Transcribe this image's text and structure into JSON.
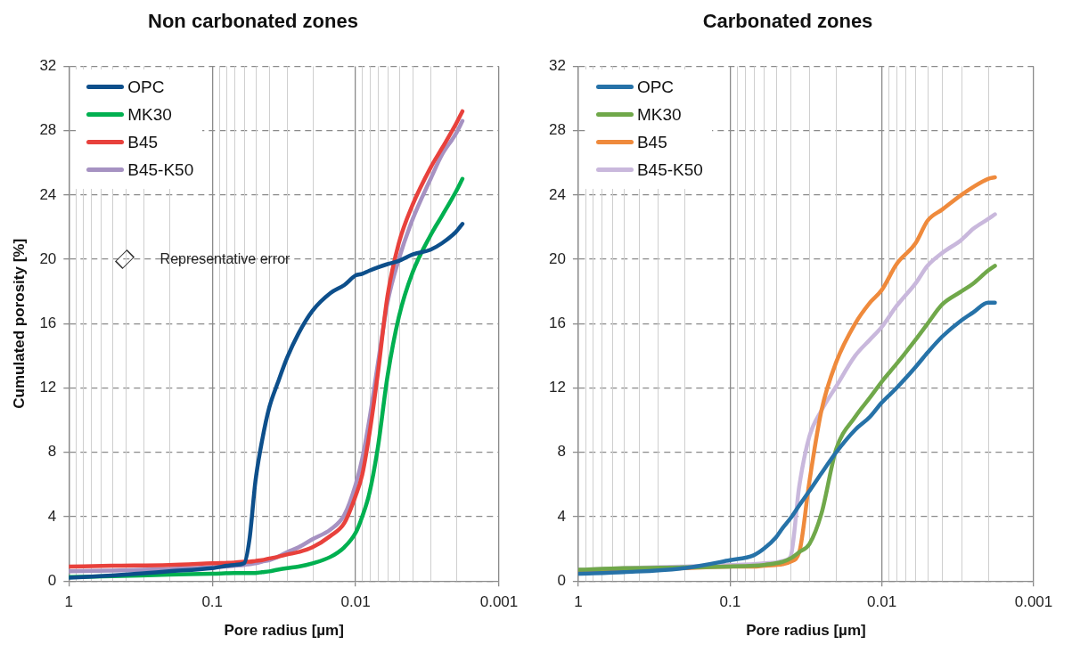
{
  "chart_data": [
    {
      "type": "line",
      "title": "Non carbonated zones",
      "xlabel": "Pore radius [µm]",
      "ylabel": "Cumulated porosity [%]",
      "log": "x",
      "grid": true,
      "legend": "top left",
      "marker": "none",
      "line_style": "solid",
      "xlim": [
        1,
        0.001
      ],
      "xticks": [
        1,
        0.1,
        0.01,
        0.001
      ],
      "ylim": [
        0,
        32
      ],
      "yticks": [
        0,
        4,
        8,
        12,
        16,
        20,
        24,
        28,
        32
      ],
      "annotations": [
        "Representative error"
      ],
      "x": [
        1,
        0.5,
        0.2,
        0.1,
        0.07,
        0.06,
        0.055,
        0.05,
        0.045,
        0.04,
        0.035,
        0.03,
        0.025,
        0.02,
        0.015,
        0.012,
        0.01,
        0.009,
        0.008,
        0.007,
        0.006,
        0.005,
        0.004,
        0.003,
        0.0025,
        0.002,
        0.0018
      ],
      "series": [
        {
          "name": "OPC",
          "color": "#0d4f8b",
          "values": [
            0.2,
            0.35,
            0.6,
            0.8,
            1.0,
            1.1,
            2.6,
            6.2,
            8.7,
            10.8,
            12.3,
            13.9,
            15.4,
            16.8,
            17.9,
            18.4,
            19.0,
            19.1,
            19.3,
            19.5,
            19.7,
            19.9,
            20.3,
            20.6,
            21.0,
            21.7,
            22.2
          ]
        },
        {
          "name": "MK30",
          "color": "#00b050",
          "values": [
            0.25,
            0.3,
            0.4,
            0.45,
            0.5,
            0.5,
            0.5,
            0.5,
            0.55,
            0.6,
            0.7,
            0.8,
            0.9,
            1.1,
            1.5,
            2.1,
            3.0,
            4.0,
            5.5,
            8.3,
            12.7,
            16.4,
            19.2,
            21.5,
            22.7,
            24.2,
            25.0
          ]
        },
        {
          "name": "B45",
          "color": "#e8413c",
          "values": [
            0.9,
            0.95,
            1.0,
            1.1,
            1.15,
            1.2,
            1.2,
            1.25,
            1.3,
            1.4,
            1.5,
            1.65,
            1.8,
            2.1,
            2.8,
            3.6,
            5.3,
            6.6,
            9.2,
            12.9,
            17.7,
            21.0,
            23.4,
            25.7,
            26.9,
            28.4,
            29.2
          ]
        },
        {
          "name": "B45-K50",
          "color": "#a692c2",
          "values": [
            0.6,
            0.65,
            0.75,
            0.85,
            0.95,
            1.0,
            1.05,
            1.1,
            1.2,
            1.3,
            1.5,
            1.8,
            2.1,
            2.6,
            3.2,
            4.1,
            6.0,
            7.6,
            10.1,
            13.5,
            17.3,
            20.0,
            22.5,
            25.0,
            26.5,
            27.8,
            28.6
          ]
        }
      ]
    },
    {
      "type": "line",
      "title": "Carbonated zones",
      "xlabel": "Pore radius [µm]",
      "log": "x",
      "grid": true,
      "legend": "top left",
      "marker": "none",
      "line_style": "solid",
      "xlim": [
        1,
        0.001
      ],
      "xticks": [
        1,
        0.1,
        0.01,
        0.001
      ],
      "ylim": [
        0,
        32
      ],
      "yticks": [
        0,
        4,
        8,
        12,
        16,
        20,
        24,
        28,
        32
      ],
      "x": [
        1,
        0.5,
        0.2,
        0.1,
        0.07,
        0.06,
        0.05,
        0.045,
        0.04,
        0.035,
        0.03,
        0.025,
        0.02,
        0.015,
        0.012,
        0.01,
        0.008,
        0.006,
        0.005,
        0.004,
        0.003,
        0.0025,
        0.002,
        0.0018
      ],
      "series": [
        {
          "name": "OPC",
          "color": "#2672a8",
          "values": [
            0.45,
            0.55,
            0.8,
            1.3,
            1.6,
            2.0,
            2.7,
            3.3,
            3.9,
            4.7,
            5.6,
            6.7,
            8.0,
            9.4,
            10.2,
            11.1,
            12.0,
            13.3,
            14.2,
            15.2,
            16.2,
            16.7,
            17.3,
            17.3
          ]
        },
        {
          "name": "MK30",
          "color": "#70a84a",
          "values": [
            0.7,
            0.8,
            0.85,
            0.9,
            0.95,
            1.0,
            1.1,
            1.2,
            1.4,
            1.8,
            2.3,
            4.2,
            8.2,
            10.2,
            11.4,
            12.4,
            13.5,
            15.0,
            16.0,
            17.2,
            18.0,
            18.5,
            19.3,
            19.6
          ]
        },
        {
          "name": "B45",
          "color": "#ef8a3c",
          "values": [
            0.6,
            0.7,
            0.8,
            0.9,
            0.9,
            0.95,
            1.0,
            1.05,
            1.2,
            1.8,
            6.2,
            10.6,
            13.6,
            16.0,
            17.3,
            18.1,
            19.7,
            21.0,
            22.4,
            23.1,
            24.0,
            24.5,
            25.0,
            25.1
          ]
        },
        {
          "name": "B45-K50",
          "color": "#c9b8dc",
          "values": [
            0.7,
            0.8,
            0.9,
            1.0,
            1.05,
            1.1,
            1.15,
            1.25,
            1.5,
            5.9,
            9.0,
            10.6,
            12.1,
            14.0,
            15.0,
            15.8,
            17.1,
            18.5,
            19.6,
            20.4,
            21.2,
            21.9,
            22.5,
            22.8
          ]
        }
      ]
    }
  ]
}
